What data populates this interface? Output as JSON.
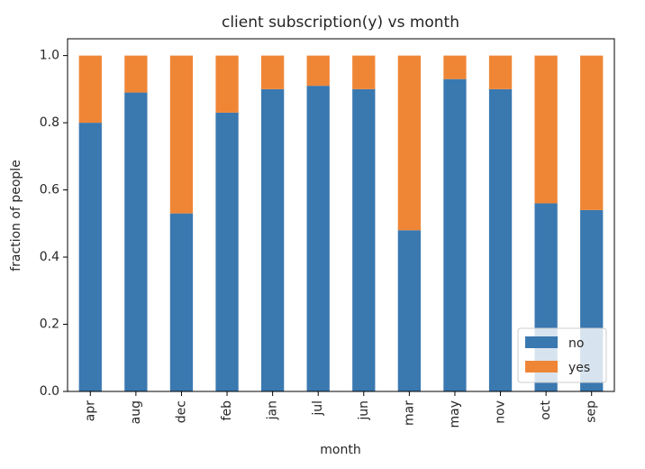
{
  "chart_data": {
    "type": "bar",
    "stacked": true,
    "title": "client subscription(y) vs month",
    "xlabel": "month",
    "ylabel": "fraction of people",
    "categories": [
      "apr",
      "aug",
      "dec",
      "feb",
      "jan",
      "jul",
      "jun",
      "mar",
      "may",
      "nov",
      "oct",
      "sep"
    ],
    "series": [
      {
        "name": "no",
        "color": "#3a78b0",
        "values": [
          0.8,
          0.89,
          0.53,
          0.83,
          0.9,
          0.91,
          0.9,
          0.48,
          0.93,
          0.9,
          0.56,
          0.54
        ]
      },
      {
        "name": "yes",
        "color": "#ef8636",
        "values": [
          0.2,
          0.11,
          0.47,
          0.17,
          0.1,
          0.09,
          0.1,
          0.52,
          0.07,
          0.1,
          0.44,
          0.46
        ]
      }
    ],
    "yticks": [
      "0.0",
      "0.2",
      "0.4",
      "0.6",
      "0.8",
      "1.0"
    ],
    "ylim": [
      0,
      1.05
    ],
    "grid": false,
    "legend": "lower-right"
  }
}
